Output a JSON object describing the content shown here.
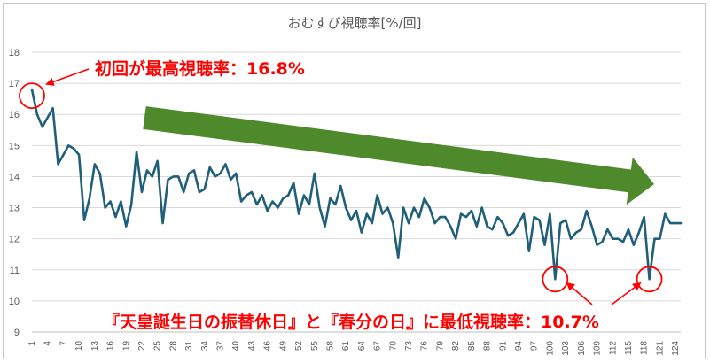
{
  "chart_data": {
    "type": "line",
    "title": "おむすび視聴率[%/回]",
    "xlabel": "",
    "ylabel": "",
    "ylim": [
      9,
      18
    ],
    "yticks": [
      9,
      10,
      11,
      12,
      13,
      14,
      15,
      16,
      17,
      18
    ],
    "grid": "horizontal",
    "legend": "none",
    "line_color": "#1f5f7a",
    "trend_arrow_color": "#4e8a2b",
    "annotation_color": "#ff0000",
    "x_tick_labels": [
      "1",
      "4",
      "7",
      "10",
      "13",
      "16",
      "19",
      "22",
      "25",
      "28",
      "31",
      "34",
      "37",
      "40",
      "43",
      "46",
      "49",
      "52",
      "55",
      "58",
      "61",
      "64",
      "67",
      "70",
      "73",
      "76",
      "79",
      "82",
      "85",
      "88",
      "91",
      "94",
      "97",
      "100",
      "103",
      "106",
      "109",
      "112",
      "115",
      "118",
      "121",
      "124"
    ],
    "series": [
      {
        "x": [
          1,
          2,
          3,
          4,
          5,
          6,
          7,
          8,
          9,
          10,
          11,
          12,
          13,
          14,
          15,
          16,
          17,
          18,
          19,
          20,
          21,
          22,
          23,
          24,
          25,
          26,
          27,
          28,
          29,
          30,
          31,
          32,
          33,
          34,
          35,
          36,
          37,
          38,
          39,
          40,
          41,
          42,
          43,
          44,
          45,
          46,
          47,
          48,
          49,
          50,
          51,
          52,
          53,
          54,
          55,
          56,
          57,
          58,
          59,
          60,
          61,
          62,
          63,
          64,
          65,
          66,
          67,
          68,
          69,
          70,
          71,
          72,
          73,
          74,
          75,
          76,
          77,
          78,
          79,
          80,
          81,
          82,
          83,
          84,
          85,
          86,
          87,
          88,
          89,
          90,
          91,
          92,
          93,
          94,
          95,
          96,
          97,
          98,
          99,
          100,
          101,
          102,
          103,
          104,
          105,
          106,
          107,
          108,
          109,
          110,
          111,
          112,
          113,
          114,
          115,
          116,
          117,
          118,
          119,
          120,
          121,
          122,
          123,
          124,
          125
        ],
        "values": [
          16.8,
          16.0,
          15.6,
          15.9,
          16.2,
          14.4,
          14.7,
          15.0,
          14.9,
          14.7,
          12.6,
          13.3,
          14.4,
          14.1,
          13.0,
          13.2,
          12.7,
          13.2,
          12.4,
          13.1,
          14.8,
          13.5,
          14.2,
          14.0,
          14.5,
          12.5,
          13.9,
          14.0,
          14.0,
          13.5,
          14.1,
          14.2,
          13.5,
          13.6,
          14.3,
          14.0,
          14.1,
          14.4,
          13.9,
          14.1,
          13.2,
          13.4,
          13.5,
          13.1,
          13.4,
          12.9,
          13.2,
          13.0,
          13.3,
          13.4,
          13.8,
          12.8,
          13.4,
          13.1,
          14.1,
          13.0,
          12.4,
          13.3,
          13.1,
          13.7,
          13.0,
          12.6,
          12.9,
          12.2,
          12.8,
          12.5,
          13.4,
          12.8,
          13.0,
          12.5,
          11.4,
          13.0,
          12.5,
          13.0,
          12.7,
          13.3,
          13.0,
          12.5,
          12.7,
          12.7,
          12.4,
          12.0,
          12.8,
          12.7,
          12.9,
          12.4,
          13.0,
          12.4,
          12.3,
          12.7,
          12.5,
          12.1,
          12.2,
          12.5,
          12.8,
          11.6,
          12.7,
          12.6,
          11.8,
          12.8,
          10.7,
          12.5,
          12.6,
          12.0,
          12.2,
          12.3,
          12.9,
          12.4,
          11.8,
          11.9,
          12.3,
          12.0,
          12.0,
          11.9,
          12.3,
          11.8,
          12.2,
          12.7,
          10.7,
          12.0,
          12.0,
          12.8,
          12.5,
          12.5,
          12.5
        ]
      }
    ],
    "annotations": {
      "first": "初回が最高視聴率：16.8%",
      "lowest": "『天皇誕生日の振替休日』と『春分の日』に最低視聴率：10.7%"
    },
    "highlighted_points": [
      1,
      101,
      119
    ]
  }
}
